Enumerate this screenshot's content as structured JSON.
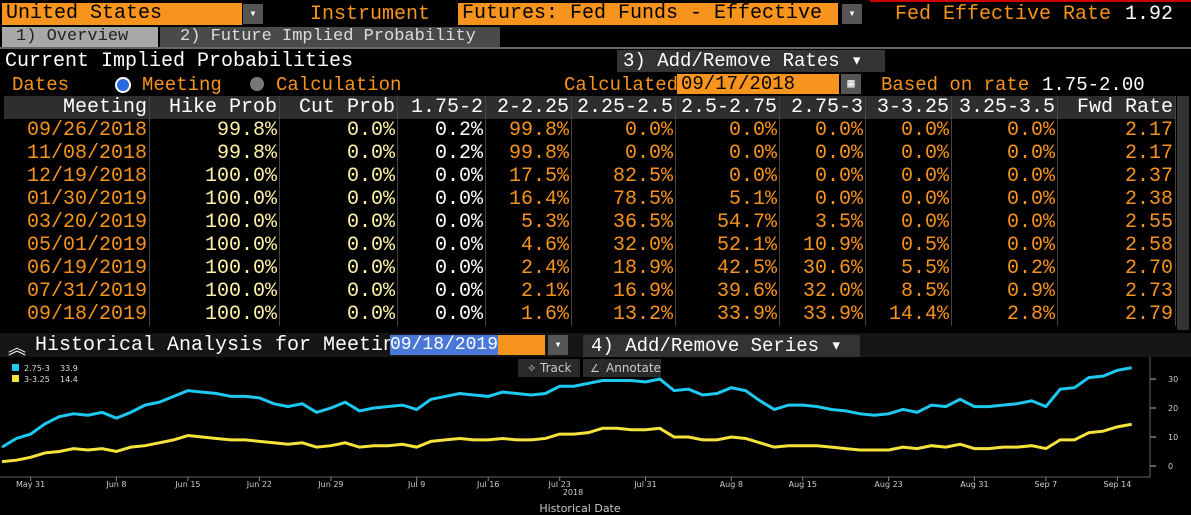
{
  "header": {
    "country": "United States",
    "instrument_label": "Instrument",
    "instrument": "Futures: Fed Funds - Effective",
    "rate_label": "Fed Effective Rate",
    "rate": "1.92"
  },
  "tabs": [
    "1) Overview",
    "2) Future Implied Probability"
  ],
  "panel": {
    "title": "Current Implied Probabilities",
    "add_remove": "3) Add/Remove Rates",
    "dates_label": "Dates",
    "option_meeting": "Meeting",
    "option_calculation": "Calculation",
    "calculated_label": "Calculated",
    "calculated_date": "09/17/2018",
    "based_label": "Based on rate",
    "based_value": "1.75-2.00"
  },
  "table": {
    "columns": [
      "Meeting",
      "Hike Prob",
      "Cut Prob",
      "1.75-2",
      "2-2.25",
      "2.25-2.5",
      "2.5-2.75",
      "2.75-3",
      "3-3.25",
      "3.25-3.5",
      "Fwd Rate"
    ],
    "rows": [
      [
        "09/26/2018",
        "99.8%",
        "0.0%",
        "0.2%",
        "99.8%",
        "0.0%",
        "0.0%",
        "0.0%",
        "0.0%",
        "0.0%",
        "2.17"
      ],
      [
        "11/08/2018",
        "99.8%",
        "0.0%",
        "0.2%",
        "99.8%",
        "0.0%",
        "0.0%",
        "0.0%",
        "0.0%",
        "0.0%",
        "2.17"
      ],
      [
        "12/19/2018",
        "100.0%",
        "0.0%",
        "0.0%",
        "17.5%",
        "82.5%",
        "0.0%",
        "0.0%",
        "0.0%",
        "0.0%",
        "2.37"
      ],
      [
        "01/30/2019",
        "100.0%",
        "0.0%",
        "0.0%",
        "16.4%",
        "78.5%",
        "5.1%",
        "0.0%",
        "0.0%",
        "0.0%",
        "2.38"
      ],
      [
        "03/20/2019",
        "100.0%",
        "0.0%",
        "0.0%",
        "5.3%",
        "36.5%",
        "54.7%",
        "3.5%",
        "0.0%",
        "0.0%",
        "2.55"
      ],
      [
        "05/01/2019",
        "100.0%",
        "0.0%",
        "0.0%",
        "4.6%",
        "32.0%",
        "52.1%",
        "10.9%",
        "0.5%",
        "0.0%",
        "2.58"
      ],
      [
        "06/19/2019",
        "100.0%",
        "0.0%",
        "0.0%",
        "2.4%",
        "18.9%",
        "42.5%",
        "30.6%",
        "5.5%",
        "0.2%",
        "2.70"
      ],
      [
        "07/31/2019",
        "100.0%",
        "0.0%",
        "0.0%",
        "2.1%",
        "16.9%",
        "39.6%",
        "32.0%",
        "8.5%",
        "0.9%",
        "2.73"
      ],
      [
        "09/18/2019",
        "100.0%",
        "0.0%",
        "0.0%",
        "1.6%",
        "13.2%",
        "33.9%",
        "33.9%",
        "14.4%",
        "2.8%",
        "2.79"
      ]
    ]
  },
  "chart_panel": {
    "title": "Historical Analysis for Meeting",
    "meeting": "09/18/2019",
    "add_remove": "4) Add/Remove Series",
    "track": "Track",
    "annotate": "Annotate"
  },
  "chart_data": {
    "type": "line",
    "year_label": "2018",
    "x_label": "Historical Date",
    "categories": [
      null,
      null,
      "May 31",
      null,
      null,
      null,
      null,
      null,
      "Jun 8",
      null,
      null,
      null,
      null,
      "Jun 15",
      null,
      null,
      null,
      null,
      "Jun 22",
      null,
      null,
      null,
      null,
      "Jun 29",
      null,
      null,
      null,
      null,
      null,
      "Jul 9",
      null,
      null,
      null,
      null,
      "Jul 16",
      null,
      null,
      null,
      null,
      "Jul 23",
      null,
      null,
      null,
      null,
      null,
      "Jul 31",
      null,
      null,
      null,
      null,
      null,
      "Aug 8",
      null,
      null,
      null,
      null,
      "Aug 15",
      null,
      null,
      null,
      null,
      null,
      "Aug 23",
      null,
      null,
      null,
      null,
      null,
      "Aug 31",
      null,
      null,
      null,
      null,
      "Sep 7",
      null,
      null,
      null,
      null,
      "Sep 14",
      null
    ],
    "series": [
      {
        "name": "2.75-3",
        "color": "#1ec8f0",
        "values": [
          6.5,
          9.5,
          11,
          14.5,
          17,
          18,
          17.5,
          18.5,
          16.5,
          18.5,
          21,
          22,
          24,
          26,
          25.5,
          25,
          24,
          24,
          23.5,
          21.5,
          20.5,
          21.5,
          18.5,
          20,
          22,
          19,
          20,
          20.5,
          21,
          19.5,
          23,
          24,
          25,
          24.5,
          24,
          25.5,
          25,
          24.5,
          25,
          27.5,
          27.5,
          28.5,
          29.5,
          29.5,
          29.5,
          29,
          30,
          26,
          26.5,
          24.5,
          25,
          27,
          26,
          22.5,
          19.5,
          21,
          21,
          20.5,
          19.5,
          19,
          18,
          17.5,
          18,
          19.5,
          18.5,
          21,
          20.5,
          23,
          20.5,
          20.5,
          21,
          21.5,
          22.5,
          20.5,
          26.5,
          27,
          30.5,
          31,
          33,
          33.9
        ]
      },
      {
        "name": "3-3.25",
        "color": "#f5e23a",
        "values": [
          1.5,
          2,
          3,
          4.5,
          5,
          6,
          5.5,
          6,
          5,
          6.5,
          7,
          8,
          9,
          10.5,
          10,
          9.5,
          9,
          9,
          8.5,
          8,
          7.5,
          8,
          6.5,
          7,
          8,
          6.5,
          7,
          7,
          7.5,
          6.5,
          8.5,
          9,
          9.5,
          9,
          9,
          9.5,
          9,
          9,
          9.5,
          11,
          11,
          11.5,
          13,
          13,
          12.5,
          12.5,
          13,
          10,
          10,
          9,
          9,
          10,
          9.5,
          8,
          6.5,
          7,
          7,
          7,
          6.5,
          6,
          5.5,
          5.5,
          5.5,
          6.5,
          6,
          7,
          6.5,
          7.5,
          6,
          6,
          6.5,
          6.5,
          7,
          6,
          9,
          9,
          11.5,
          12,
          13.5,
          14.4
        ]
      }
    ],
    "ylim": [
      -3.8,
      37.6
    ],
    "yticks": [
      0,
      10,
      20,
      30
    ]
  }
}
